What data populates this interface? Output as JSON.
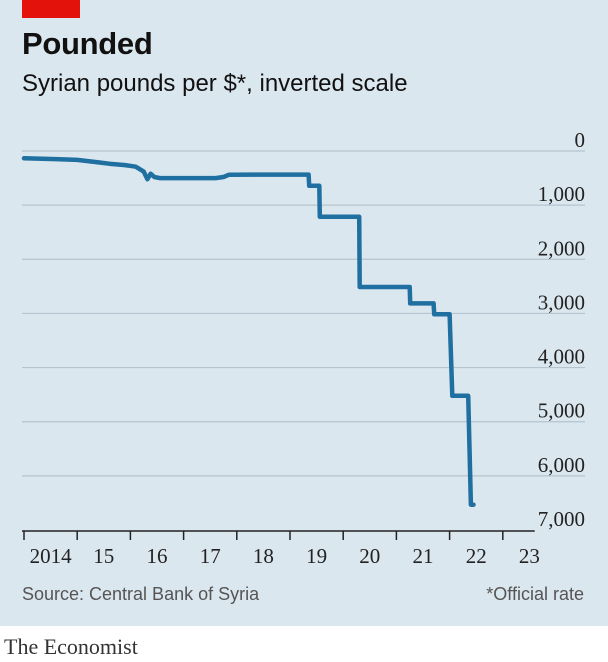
{
  "title": "Pounded",
  "subtitle": "Syrian pounds per $*, inverted scale",
  "source": "Source: Central Bank of Syria",
  "footnote": "*Official rate",
  "brand": "The Economist",
  "colors": {
    "line": "#1f6fa0",
    "grid": "#b5c4cf",
    "panel": "#dbe7ef",
    "tag": "#e3120b",
    "axis": "#222222"
  },
  "chart_data": {
    "type": "line",
    "title": "Pounded",
    "subtitle": "Syrian pounds per $*, inverted scale",
    "ylim": [
      0,
      7000
    ],
    "y_inverted": true,
    "y_ticks": [
      0,
      1000,
      2000,
      3000,
      4000,
      5000,
      6000,
      7000
    ],
    "y_tick_labels": [
      "0",
      "1,000",
      "2,000",
      "3,000",
      "4,000",
      "5,000",
      "6,000",
      "7,000"
    ],
    "xlim": [
      2014.0,
      2024.0
    ],
    "x_ticks": [
      2014,
      2015,
      2016,
      2017,
      2018,
      2019,
      2020,
      2021,
      2022,
      2023
    ],
    "x_tick_labels": [
      "2014",
      "15",
      "16",
      "17",
      "18",
      "19",
      "20",
      "21",
      "22",
      "23"
    ],
    "grid": "horizontal",
    "series": [
      {
        "points": [
          [
            2014.0,
            135
          ],
          [
            2014.6,
            150
          ],
          [
            2015.0,
            165
          ],
          [
            2015.4,
            210
          ],
          [
            2015.6,
            235
          ],
          [
            2015.9,
            260
          ],
          [
            2016.1,
            290
          ],
          [
            2016.25,
            380
          ],
          [
            2016.32,
            520
          ],
          [
            2016.38,
            420
          ],
          [
            2016.45,
            480
          ],
          [
            2016.55,
            500
          ],
          [
            2017.0,
            500
          ],
          [
            2017.6,
            500
          ],
          [
            2017.75,
            480
          ],
          [
            2017.85,
            440
          ],
          [
            2018.5,
            436
          ],
          [
            2019.0,
            436
          ],
          [
            2019.35,
            436
          ],
          [
            2019.36,
            640
          ],
          [
            2019.55,
            640
          ],
          [
            2019.56,
            1215
          ],
          [
            2020.3,
            1215
          ],
          [
            2020.31,
            2512
          ],
          [
            2021.25,
            2512
          ],
          [
            2021.26,
            2814
          ],
          [
            2021.7,
            2814
          ],
          [
            2021.71,
            3015
          ],
          [
            2022.0,
            3015
          ],
          [
            2022.05,
            4522
          ],
          [
            2022.35,
            4522
          ],
          [
            2022.4,
            6532
          ],
          [
            2022.45,
            6532
          ]
        ]
      }
    ]
  }
}
